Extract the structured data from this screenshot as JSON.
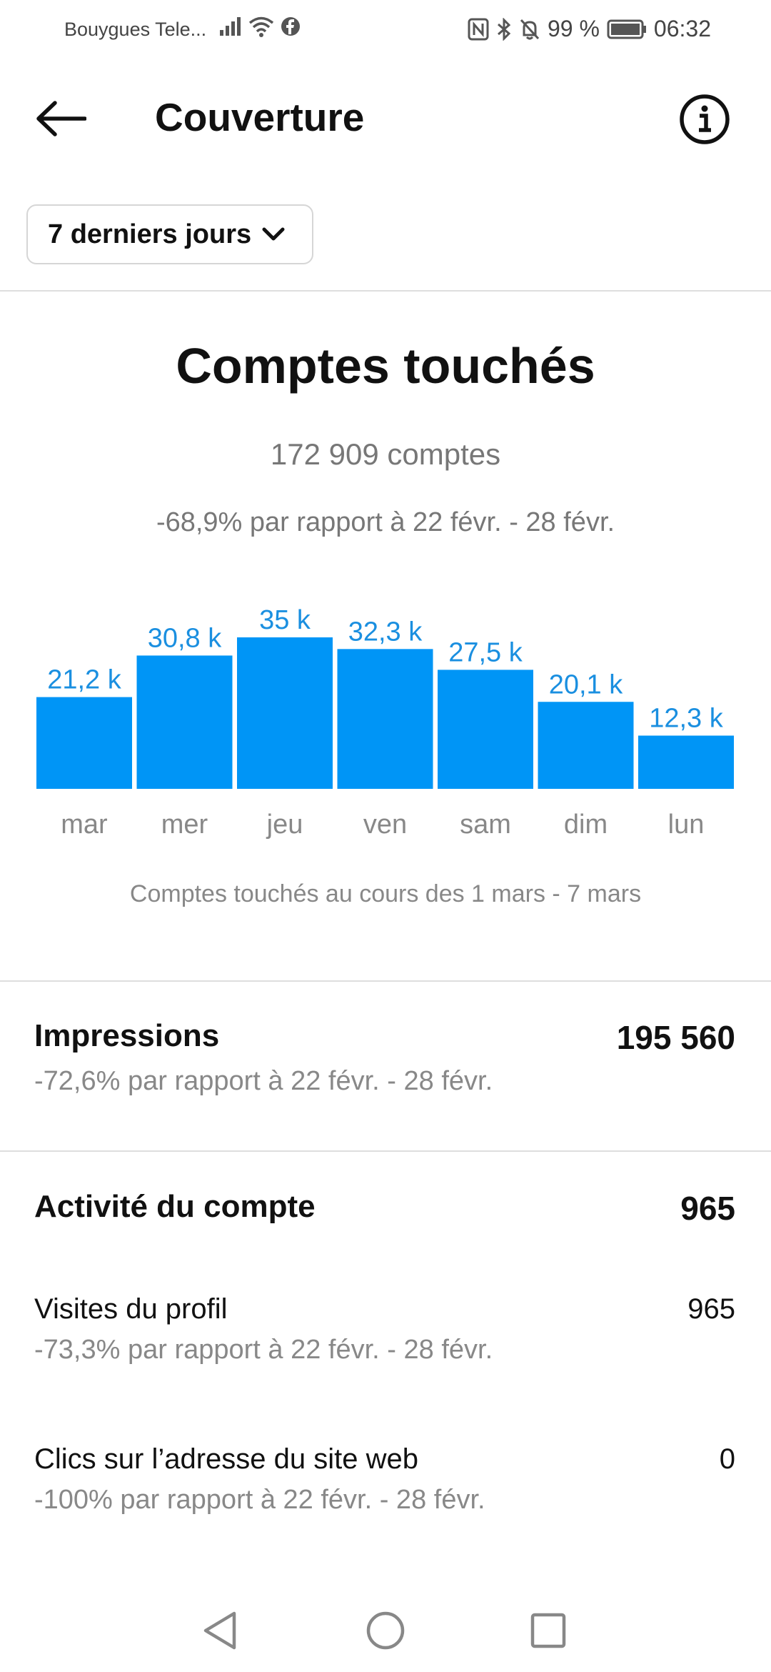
{
  "status_bar": {
    "carrier": "Bouygues Tele...",
    "battery": "99 %",
    "time": "06:32"
  },
  "header": {
    "title": "Couverture"
  },
  "period_selector": {
    "label": "7 derniers jours"
  },
  "reach": {
    "title": "Comptes touchés",
    "count": "172 909 comptes",
    "change": "-68,9% par rapport à 22 févr. - 28 févr.",
    "caption": "Comptes touchés au cours des 1 mars - 7 mars"
  },
  "chart_data": {
    "type": "bar",
    "categories": [
      "mar",
      "mer",
      "jeu",
      "ven",
      "sam",
      "dim",
      "lun"
    ],
    "values": [
      21.2,
      30.8,
      35,
      32.3,
      27.5,
      20.1,
      12.3
    ],
    "value_labels": [
      "21,2 k",
      "30,8 k",
      "35 k",
      "32,3 k",
      "27,5 k",
      "20,1 k",
      "12,3 k"
    ],
    "title": "",
    "xlabel": "",
    "ylabel": "",
    "ylim": [
      0,
      35
    ],
    "grid": false,
    "bar_color": "#0095f6",
    "label_color": "#1a8fe0"
  },
  "impressions": {
    "title": "Impressions",
    "value": "195 560",
    "change": "-72,6% par rapport à 22 févr. - 28 févr."
  },
  "account_activity": {
    "title": "Activité du compte",
    "value": "965",
    "rows": [
      {
        "label": "Visites du profil",
        "value": "965",
        "change": "-73,3% par rapport à 22 févr. - 28 févr."
      },
      {
        "label": "Clics sur l’adresse du site web",
        "value": "0",
        "change": "-100% par rapport à 22 févr. - 28 févr."
      }
    ]
  },
  "icons": {
    "back": "arrow-left-icon",
    "info": "info-icon",
    "dropdown": "chevron-down-icon",
    "nav_back": "triangle-back-icon",
    "nav_home": "circle-home-icon",
    "nav_recents": "square-recents-icon"
  }
}
